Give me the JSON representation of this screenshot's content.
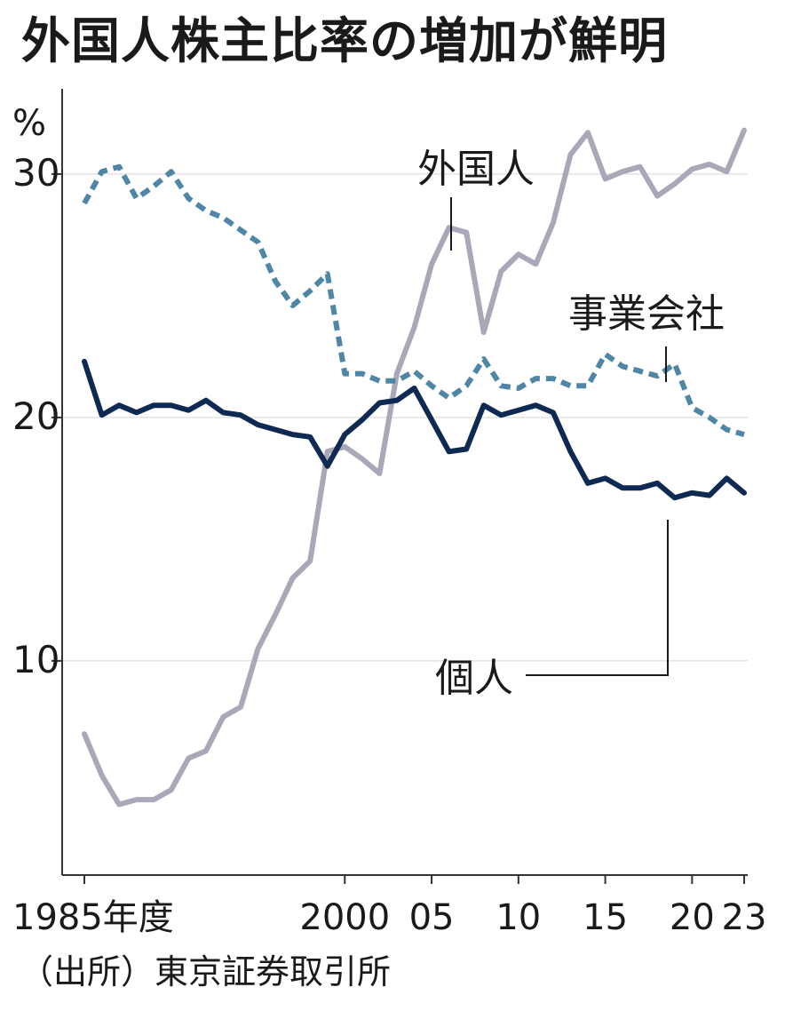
{
  "chart_data": {
    "type": "line",
    "title": "外国人株主比率の増加が鮮明",
    "ylabel": "%",
    "xlabel": "",
    "ylim": [
      1.2,
      33.5
    ],
    "xlim": [
      1985,
      2023
    ],
    "y_ticks": [
      10,
      20,
      30
    ],
    "x_tick_labels": [
      {
        "x": 1985,
        "label": "1985年度"
      },
      {
        "x": 2000,
        "label": "2000"
      },
      {
        "x": 2005,
        "label": "05"
      },
      {
        "x": 2010,
        "label": "10"
      },
      {
        "x": 2015,
        "label": "15"
      },
      {
        "x": 2020,
        "label": "20"
      },
      {
        "x": 2023,
        "label": "23"
      }
    ],
    "x": [
      1985,
      1986,
      1987,
      1988,
      1989,
      1990,
      1991,
      1992,
      1993,
      1994,
      1995,
      1996,
      1997,
      1998,
      1999,
      2000,
      2001,
      2002,
      2003,
      2004,
      2005,
      2006,
      2007,
      2008,
      2009,
      2010,
      2011,
      2012,
      2013,
      2014,
      2015,
      2016,
      2017,
      2018,
      2019,
      2020,
      2021,
      2022,
      2023
    ],
    "series": [
      {
        "name": "外国人",
        "color": "#a9a8b8",
        "style": "solid",
        "values": [
          7.0,
          5.3,
          4.1,
          4.3,
          4.3,
          4.7,
          6.0,
          6.3,
          7.7,
          8.1,
          10.5,
          11.9,
          13.4,
          14.1,
          18.6,
          18.8,
          18.3,
          17.7,
          21.8,
          23.7,
          26.3,
          27.8,
          27.6,
          23.5,
          26.0,
          26.7,
          26.3,
          28.0,
          30.8,
          31.7,
          29.8,
          30.1,
          30.3,
          29.1,
          29.6,
          30.2,
          30.4,
          30.1,
          31.8
        ]
      },
      {
        "name": "事業会社",
        "color": "#4f86a6",
        "style": "dashed",
        "values": [
          28.8,
          30.1,
          30.3,
          29.0,
          29.5,
          30.1,
          29.0,
          28.5,
          28.2,
          27.7,
          27.2,
          25.6,
          24.6,
          25.2,
          25.9,
          21.8,
          21.8,
          21.5,
          21.5,
          21.9,
          21.3,
          20.8,
          21.3,
          22.4,
          21.3,
          21.2,
          21.6,
          21.6,
          21.3,
          21.3,
          22.6,
          22.1,
          21.9,
          21.7,
          22.2,
          20.4,
          20.0,
          19.5,
          19.3
        ]
      },
      {
        "name": "個人",
        "color": "#0f2a52",
        "style": "solid",
        "values": [
          22.3,
          20.1,
          20.5,
          20.2,
          20.5,
          20.5,
          20.3,
          20.7,
          20.2,
          20.1,
          19.7,
          19.5,
          19.3,
          19.2,
          18.0,
          19.3,
          19.9,
          20.6,
          20.7,
          21.2,
          19.9,
          18.6,
          18.7,
          20.5,
          20.1,
          20.3,
          20.5,
          20.2,
          18.6,
          17.3,
          17.5,
          17.1,
          17.1,
          17.3,
          16.7,
          16.9,
          16.8,
          17.5,
          16.9
        ]
      }
    ],
    "annotations": [
      "外国人",
      "事業会社",
      "個人"
    ]
  },
  "source": "（出所）東京証券取引所"
}
